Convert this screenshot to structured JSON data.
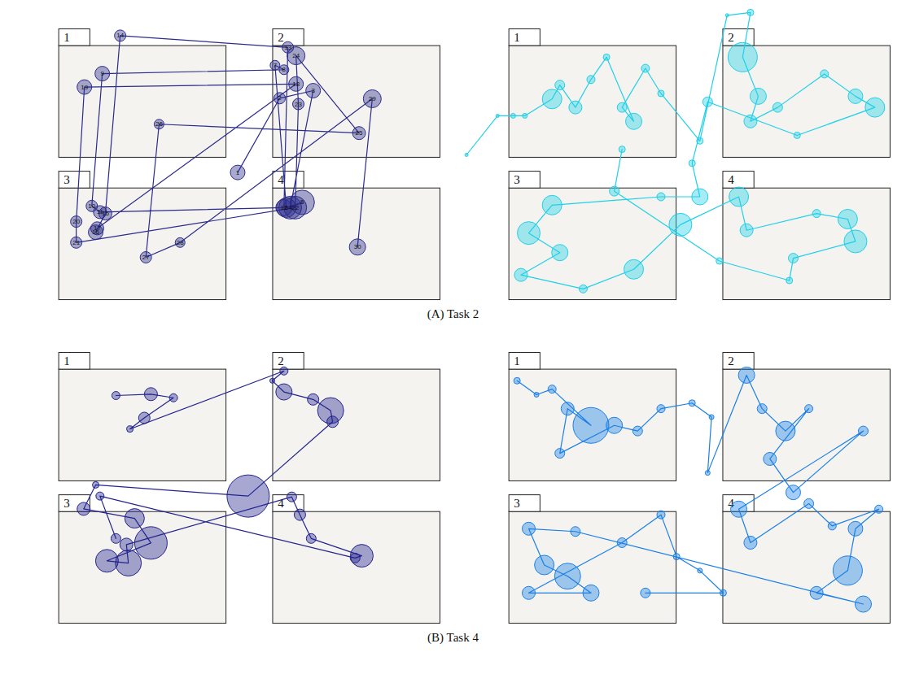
{
  "chart_data": [
    {
      "type": "scatter",
      "image_labels": [
        "1",
        "2",
        "3",
        "4"
      ],
      "color": "#2b2b8c",
      "marker": "circle",
      "line_style": "solid",
      "xlim": [
        -12,
        101
      ],
      "ylim": [
        100,
        -6
      ],
      "tick_labels": false,
      "labels": [
        1,
        2,
        3,
        4,
        5,
        6,
        7,
        8,
        9,
        10,
        11,
        12,
        13,
        14,
        15,
        16,
        17,
        18,
        19,
        20,
        21,
        22,
        23,
        24,
        25,
        26,
        27,
        28,
        29,
        30
      ],
      "x": [
        46.9,
        57.7,
        66.3,
        60.4,
        63.5,
        59.4,
        56.5,
        58.8,
        12.1,
        9.4,
        11.5,
        58.8,
        59.8,
        16.7,
        12.9,
        10.4,
        10.8,
        61.9,
        7.5,
        5.4,
        5.4,
        61.7,
        62.5,
        61.9,
        78.1,
        26.7,
        23.3,
        32.1,
        81.5,
        77.7
      ],
      "y": [
        53.3,
        26.7,
        24.0,
        65.9,
        64.0,
        65.9,
        14.9,
        16.5,
        17.9,
        65.3,
        67.5,
        65.9,
        8.5,
        4.3,
        68.0,
        74.7,
        73.3,
        21.6,
        22.7,
        70.9,
        78.4,
        65.9,
        28.8,
        11.5,
        39.2,
        36.0,
        83.7,
        78.4,
        26.9,
        80.0
      ],
      "sizes": [
        9,
        7,
        9,
        14,
        15,
        12,
        6,
        6,
        9,
        7,
        8,
        10,
        7,
        7,
        8,
        9,
        8,
        9,
        9,
        7,
        7,
        14,
        7,
        11,
        8,
        6,
        7,
        6,
        11,
        10
      ]
    },
    {
      "type": "scatter",
      "image_labels": [
        "1",
        "2",
        "3",
        "4"
      ],
      "color": "#1fd0e8",
      "marker": "circle",
      "line_style": "solid",
      "xlim": [
        -12,
        101
      ],
      "ylim": [
        100,
        -6
      ],
      "tick_labels": false,
      "x": [
        -10,
        -2,
        2,
        5,
        12,
        14,
        18,
        22,
        26,
        33,
        30,
        36,
        40,
        50,
        57,
        63,
        61,
        65,
        63,
        70,
        82,
        90,
        95,
        75,
        52,
        48,
        50,
        40,
        12,
        6,
        14,
        4,
        20,
        33,
        45,
        60,
        62,
        80,
        88,
        90,
        74,
        73,
        55,
        28,
        30
      ],
      "y": [
        47,
        33,
        33,
        33,
        27,
        22,
        30,
        20,
        12,
        35,
        30,
        16,
        25,
        42,
        -3,
        -4,
        12,
        26,
        35,
        30,
        18,
        26,
        30,
        40,
        28,
        50,
        62,
        62,
        65,
        75,
        82,
        90,
        95,
        88,
        72,
        62,
        74,
        68,
        70,
        78,
        84,
        92,
        85,
        60,
        45
      ],
      "sizes": [
        2,
        2,
        3,
        3,
        12,
        6,
        8,
        5,
        4,
        10,
        6,
        5,
        4,
        4,
        2,
        4,
        18,
        10,
        8,
        6,
        5,
        9,
        12,
        4,
        6,
        4,
        10,
        5,
        12,
        14,
        10,
        8,
        5,
        12,
        14,
        12,
        8,
        5,
        12,
        14,
        6,
        4,
        4,
        6,
        4
      ]
    },
    {
      "type": "scatter",
      "image_labels": [
        "1",
        "2",
        "3",
        "4"
      ],
      "color": "#23238f",
      "marker": "circle",
      "line_style": "solid",
      "xlim": [
        -12,
        101
      ],
      "ylim": [
        100,
        -6
      ],
      "tick_labels": false,
      "x": [
        15.6,
        24.6,
        30.4,
        22.9,
        19.2,
        58.8,
        55.8,
        58.8,
        66.3,
        70.8,
        71.3,
        49.6,
        10.4,
        7.3,
        20.4,
        24.6,
        13.3,
        18.8,
        18.3,
        60.8,
        62.9,
        65.8,
        78.8,
        77.1,
        11.5,
        15.6
      ],
      "y": [
        17.3,
        16.8,
        18.1,
        25.3,
        29.3,
        8.5,
        12.0,
        16.0,
        18.7,
        22.7,
        26.7,
        53.3,
        49.3,
        57.9,
        61.3,
        70.1,
        76.5,
        77.3,
        70.7,
        53.6,
        60.0,
        68.5,
        74.7,
        75.5,
        53.3,
        68.5
      ],
      "sizes": [
        5,
        8,
        5,
        7,
        4,
        5,
        3,
        10,
        7,
        16,
        7,
        26,
        4,
        8,
        12,
        20,
        14,
        16,
        8,
        6,
        7,
        6,
        14,
        6,
        5,
        6
      ]
    },
    {
      "type": "scatter",
      "image_labels": [
        "1",
        "2",
        "3",
        "4"
      ],
      "color": "#1a7fe8",
      "marker": "circle",
      "line_style": "solid",
      "xlim": [
        -12,
        101
      ],
      "ylim": [
        100,
        -6
      ],
      "tick_labels": false,
      "x": [
        3,
        8,
        12,
        22,
        16,
        14,
        28,
        34,
        40,
        48,
        53,
        52,
        62,
        66,
        72,
        78,
        68,
        74,
        92,
        60,
        63,
        78,
        84,
        96,
        90,
        88,
        80,
        92,
        18,
        6,
        10,
        16,
        22,
        6,
        30,
        40,
        44,
        50,
        56,
        36
      ],
      "y": [
        12,
        17,
        15,
        28,
        22,
        38,
        28,
        30,
        22,
        20,
        25,
        45,
        10,
        22,
        30,
        22,
        40,
        52,
        30,
        58,
        70,
        56,
        64,
        58,
        65,
        80,
        88,
        92,
        66,
        65,
        78,
        82,
        88,
        88,
        70,
        60,
        75,
        80,
        88,
        88
      ],
      "sizes": [
        4,
        3,
        5,
        22,
        8,
        6,
        10,
        6,
        5,
        4,
        3,
        3,
        10,
        6,
        12,
        5,
        8,
        9,
        6,
        10,
        8,
        6,
        5,
        5,
        9,
        18,
        8,
        10,
        6,
        8,
        12,
        16,
        10,
        8,
        6,
        5,
        4,
        3,
        4,
        6
      ]
    }
  ],
  "captions": [
    "(A) Task 2",
    "(B) Task 4"
  ]
}
